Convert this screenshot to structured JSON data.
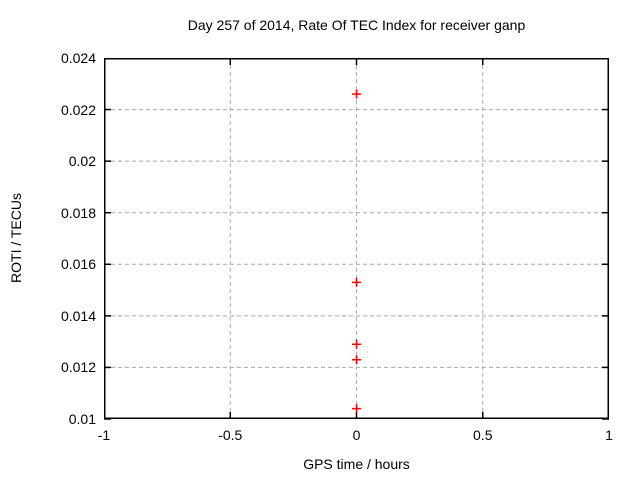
{
  "chart_data": {
    "type": "scatter",
    "title": "Day 257 of 2014, Rate Of TEC Index for receiver ganp",
    "xlabel": "GPS time / hours",
    "ylabel": "ROTI / TECUs",
    "xlim": [
      -1,
      1
    ],
    "ylim": [
      0.01,
      0.024
    ],
    "xticks": {
      "values": [
        -1,
        -0.5,
        0,
        0.5,
        1
      ],
      "labels": [
        "-1",
        "-0.5",
        "0",
        "0.5",
        "1"
      ]
    },
    "yticks": {
      "values": [
        0.01,
        0.012,
        0.014,
        0.016,
        0.018,
        0.02,
        0.022,
        0.024
      ],
      "labels": [
        "0.01",
        "0.012",
        "0.014",
        "0.016",
        "0.018",
        "0.02",
        "0.022",
        "0.024"
      ]
    },
    "series": [
      {
        "name": "ROTI",
        "marker": "plus",
        "color": "#ff0000",
        "points": [
          {
            "x": 0,
            "y": 0.0226
          },
          {
            "x": 0,
            "y": 0.0153
          },
          {
            "x": 0,
            "y": 0.0129
          },
          {
            "x": 0,
            "y": 0.0123
          },
          {
            "x": 0,
            "y": 0.0104
          }
        ]
      }
    ],
    "grid": {
      "show": true,
      "style": "dashed",
      "color": "#a9a9a9"
    },
    "legend": "none",
    "colors": {
      "background": "#ffffff",
      "axis": "#000000",
      "text": "#000000",
      "point": "#ff0000",
      "grid": "#a9a9a9"
    }
  }
}
